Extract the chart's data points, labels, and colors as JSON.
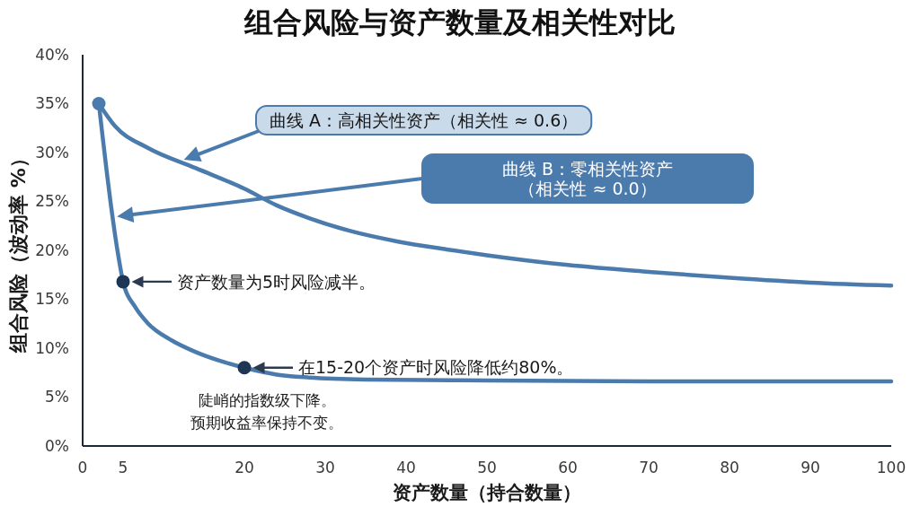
{
  "chart_data": {
    "type": "line",
    "title": "组合风险与资产数量及相关性对比",
    "xlabel": "资产数量（持合数量）",
    "ylabel": "组合风险（波动率 %）",
    "xlim": [
      0,
      100
    ],
    "xticks": [
      0,
      5,
      20,
      30,
      40,
      50,
      60,
      70,
      80,
      90,
      100
    ],
    "ylim": [
      0,
      40
    ],
    "yticks": [
      {
        "value": 0,
        "label": "0%"
      },
      {
        "value": 5,
        "label": "5%"
      },
      {
        "value": 10,
        "label": "10%"
      },
      {
        "value": 15,
        "label": "15%"
      },
      {
        "value": 20,
        "label": "20%"
      },
      {
        "value": 25,
        "label": "25%"
      },
      {
        "value": 30,
        "label": "30%"
      },
      {
        "value": 35,
        "label": "35%"
      },
      {
        "value": 40,
        "label": "40%"
      }
    ],
    "series": [
      {
        "name": "曲线 A：高相关性资产（相关性 ≈ 0.6）",
        "color": "#4a7bac",
        "x": [
          2,
          4,
          8,
          14,
          20,
          24,
          28,
          33,
          39,
          45,
          50,
          60,
          70,
          80,
          90,
          100
        ],
        "values": [
          35,
          32.7,
          30.5,
          28.4,
          26.3,
          24.6,
          23.3,
          22.0,
          20.9,
          20.1,
          19.5,
          18.5,
          17.8,
          17.2,
          16.7,
          16.4
        ]
      },
      {
        "name": "曲线 B：零相关性资产（相关性 ≈ 0.0）",
        "color": "#4a7bac",
        "x": [
          2,
          2.5,
          3,
          3.5,
          4,
          4.5,
          5,
          6.5,
          8,
          11,
          14,
          17,
          20,
          24,
          28,
          35,
          50,
          70,
          100
        ],
        "values": [
          35,
          31.4,
          27.9,
          24.6,
          21.6,
          19.0,
          16.8,
          14.2,
          12.6,
          10.8,
          9.6,
          8.7,
          8.0,
          7.3,
          7.0,
          6.8,
          6.7,
          6.6,
          6.6
        ]
      },
      {
        "type": "scatter",
        "marker": "circle",
        "x": [
          2,
          5,
          20
        ],
        "values": [
          35,
          16.8,
          8.0
        ],
        "colors": [
          "#4a7bac",
          "#1d3656",
          "#1d3656"
        ]
      }
    ],
    "annotations": [
      "资产数量为5时风险减半。",
      "在15-20个资产时风险降低约80%。",
      "陡峭的指数级下降。预期收益率保持不变。"
    ]
  }
}
